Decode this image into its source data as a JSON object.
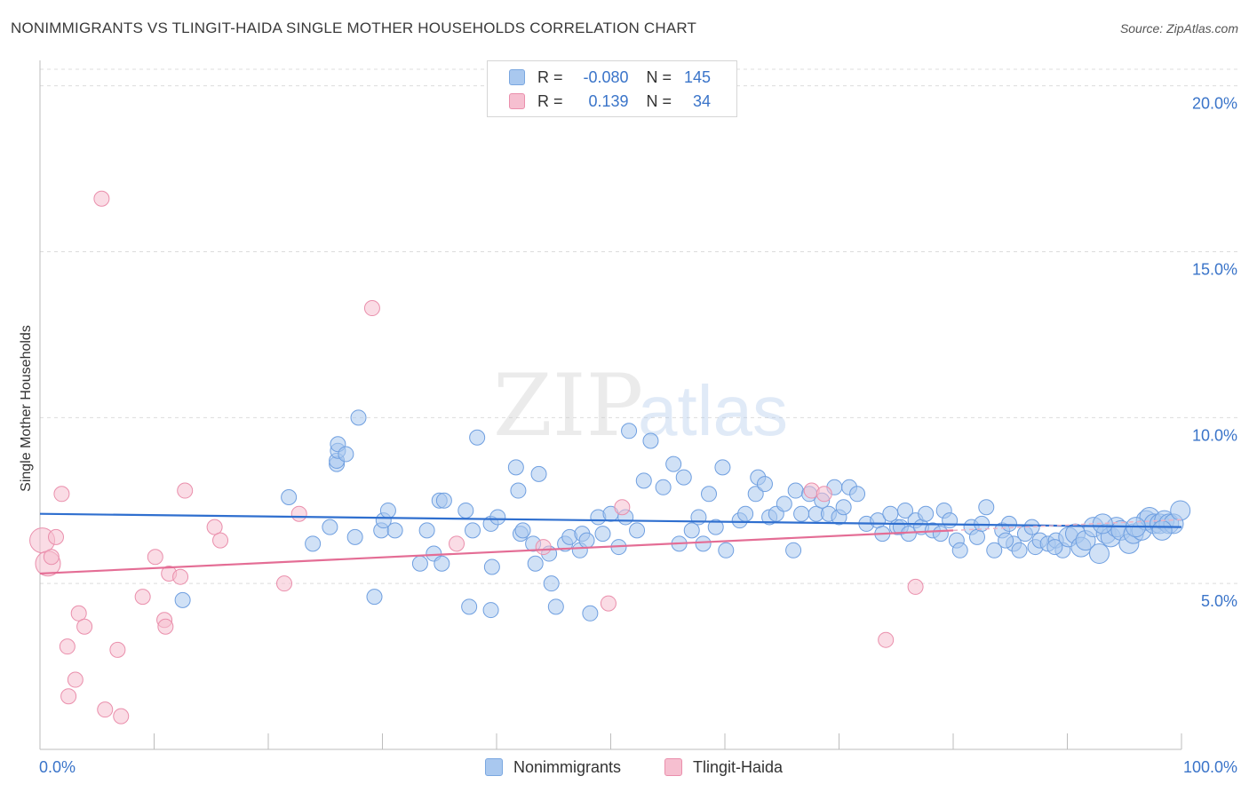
{
  "title": "NONIMMIGRANTS VS TLINGIT-HAIDA SINGLE MOTHER HOUSEHOLDS CORRELATION CHART",
  "source": "Source: ZipAtlas.com",
  "watermark": {
    "zip": "ZIP",
    "atlas": "atlas"
  },
  "legend": {
    "rows": [
      {
        "r_label": "R =",
        "r_value": "-0.080",
        "n_label": "N =",
        "n_value": "145",
        "color": "#a9c8ef",
        "border": "#7aa7e0"
      },
      {
        "r_label": "R =",
        "r_value": "0.139",
        "n_label": "N =",
        "n_value": "34",
        "color": "#f6bfd0",
        "border": "#ea8fac"
      }
    ]
  },
  "bottom_legend": [
    {
      "label": "Nonimmigrants",
      "color": "#a9c8ef",
      "border": "#7aa7e0"
    },
    {
      "label": "Tlingit-Haida",
      "color": "#f6bfd0",
      "border": "#ea8fac"
    }
  ],
  "chart_data": {
    "type": "scatter",
    "title": "NONIMMIGRANTS VS TLINGIT-HAIDA SINGLE MOTHER HOUSEHOLDS CORRELATION CHART",
    "xlabel": "",
    "ylabel": "Single Mother Households",
    "xlim": [
      0,
      100
    ],
    "ylim": [
      0,
      20.5
    ],
    "x_tick_labels": [
      "0.0%",
      "100.0%"
    ],
    "y_ticks": [
      5,
      10,
      15,
      20
    ],
    "y_tick_labels": [
      "5.0%",
      "10.0%",
      "15.0%",
      "20.0%"
    ],
    "grid": true,
    "series": [
      {
        "name": "Nonimmigrants",
        "color": "#6f9fe0",
        "trend": {
          "x0": 0,
          "y0": 7.1,
          "x1": 100,
          "y1": 6.7,
          "color": "#2f6fcf"
        },
        "points": [
          [
            12.5,
            4.5
          ],
          [
            21.8,
            7.6
          ],
          [
            23.9,
            6.2
          ],
          [
            25.4,
            6.7
          ],
          [
            26.0,
            8.6
          ],
          [
            26.0,
            8.7
          ],
          [
            26.1,
            9.0
          ],
          [
            26.1,
            9.2
          ],
          [
            26.8,
            8.9
          ],
          [
            27.6,
            6.4
          ],
          [
            27.9,
            10.0
          ],
          [
            29.3,
            4.6
          ],
          [
            29.9,
            6.6
          ],
          [
            30.1,
            6.9
          ],
          [
            30.5,
            7.2
          ],
          [
            31.1,
            6.6
          ],
          [
            33.3,
            5.6
          ],
          [
            33.9,
            6.6
          ],
          [
            34.5,
            5.9
          ],
          [
            35.0,
            7.5
          ],
          [
            35.2,
            5.6
          ],
          [
            35.4,
            7.5
          ],
          [
            37.3,
            7.2
          ],
          [
            37.6,
            4.3
          ],
          [
            37.9,
            6.6
          ],
          [
            38.3,
            9.4
          ],
          [
            39.6,
            5.5
          ],
          [
            39.5,
            4.2
          ],
          [
            39.5,
            6.8
          ],
          [
            40.1,
            7.0
          ],
          [
            41.7,
            8.5
          ],
          [
            41.9,
            7.8
          ],
          [
            42.1,
            6.5
          ],
          [
            42.3,
            6.6
          ],
          [
            43.2,
            6.2
          ],
          [
            43.4,
            5.6
          ],
          [
            43.7,
            8.3
          ],
          [
            44.6,
            5.9
          ],
          [
            44.8,
            5.0
          ],
          [
            45.2,
            4.3
          ],
          [
            46.0,
            6.2
          ],
          [
            46.4,
            6.4
          ],
          [
            47.3,
            6.0
          ],
          [
            47.5,
            6.5
          ],
          [
            47.9,
            6.3
          ],
          [
            48.2,
            4.1
          ],
          [
            48.9,
            7.0
          ],
          [
            49.3,
            6.5
          ],
          [
            50.0,
            7.1
          ],
          [
            50.7,
            6.1
          ],
          [
            51.3,
            7.0
          ],
          [
            51.6,
            9.6
          ],
          [
            52.3,
            6.6
          ],
          [
            52.9,
            8.1
          ],
          [
            53.5,
            9.3
          ],
          [
            54.6,
            7.9
          ],
          [
            55.5,
            8.6
          ],
          [
            56.0,
            6.2
          ],
          [
            56.4,
            8.2
          ],
          [
            57.1,
            6.6
          ],
          [
            57.7,
            7.0
          ],
          [
            58.1,
            6.2
          ],
          [
            58.6,
            7.7
          ],
          [
            59.2,
            6.7
          ],
          [
            59.8,
            8.5
          ],
          [
            60.1,
            6.0
          ],
          [
            61.3,
            6.9
          ],
          [
            61.8,
            7.1
          ],
          [
            62.7,
            7.7
          ],
          [
            62.9,
            8.2
          ],
          [
            63.5,
            8.0
          ],
          [
            63.9,
            7.0
          ],
          [
            64.5,
            7.1
          ],
          [
            65.2,
            7.4
          ],
          [
            66.0,
            6.0
          ],
          [
            66.2,
            7.8
          ],
          [
            66.7,
            7.1
          ],
          [
            67.4,
            7.7
          ],
          [
            68.0,
            7.1
          ],
          [
            68.5,
            7.5
          ],
          [
            69.1,
            7.1
          ],
          [
            69.6,
            7.9
          ],
          [
            70.0,
            7.0
          ],
          [
            70.4,
            7.3
          ],
          [
            70.9,
            7.9
          ],
          [
            71.6,
            7.7
          ],
          [
            72.4,
            6.8
          ],
          [
            73.4,
            6.9
          ],
          [
            73.8,
            6.5
          ],
          [
            74.5,
            7.1
          ],
          [
            75.1,
            6.7
          ],
          [
            75.4,
            6.7
          ],
          [
            75.8,
            7.2
          ],
          [
            76.1,
            6.5
          ],
          [
            76.7,
            6.9
          ],
          [
            77.2,
            6.7
          ],
          [
            77.6,
            7.1
          ],
          [
            78.2,
            6.6
          ],
          [
            78.9,
            6.5
          ],
          [
            79.2,
            7.2
          ],
          [
            79.7,
            6.9
          ],
          [
            80.3,
            6.3
          ],
          [
            80.6,
            6.0
          ],
          [
            81.6,
            6.7
          ],
          [
            82.1,
            6.4
          ],
          [
            82.5,
            6.8
          ],
          [
            82.9,
            7.3
          ],
          [
            83.6,
            6.0
          ],
          [
            84.3,
            6.6
          ],
          [
            84.9,
            6.8
          ],
          [
            85.3,
            6.2
          ],
          [
            85.8,
            6.0
          ],
          [
            86.3,
            6.5
          ],
          [
            86.9,
            6.7
          ],
          [
            87.2,
            6.1
          ],
          [
            87.6,
            6.3
          ],
          [
            88.3,
            6.2
          ],
          [
            89.0,
            6.3
          ],
          [
            89.6,
            6.0
          ],
          [
            90.1,
            6.4
          ],
          [
            90.7,
            6.5
          ],
          [
            91.2,
            6.1
          ],
          [
            91.6,
            6.3
          ],
          [
            92.3,
            6.7
          ],
          [
            92.8,
            5.9
          ],
          [
            93.4,
            6.5
          ],
          [
            93.8,
            6.4
          ],
          [
            94.3,
            6.7
          ],
          [
            94.7,
            6.6
          ],
          [
            95.4,
            6.2
          ],
          [
            95.8,
            6.5
          ],
          [
            96.5,
            6.6
          ],
          [
            96.9,
            6.9
          ],
          [
            97.2,
            7.0
          ],
          [
            97.6,
            6.8
          ],
          [
            98.1,
            6.8
          ],
          [
            98.5,
            6.9
          ],
          [
            98.9,
            6.8
          ],
          [
            99.3,
            6.8
          ],
          [
            99.9,
            7.2
          ],
          [
            98.3,
            6.6
          ],
          [
            96.0,
            6.7
          ],
          [
            93.1,
            6.8
          ],
          [
            88.9,
            6.1
          ],
          [
            84.6,
            6.3
          ]
        ]
      },
      {
        "name": "Tlingit-Haida",
        "color": "#f29ab6",
        "trend": {
          "x0": 0,
          "y0": 5.3,
          "x1": 80,
          "y1": 6.6,
          "color": "#e46d95"
        },
        "points": [
          [
            0.2,
            6.3
          ],
          [
            0.7,
            5.6
          ],
          [
            1.0,
            5.8
          ],
          [
            1.4,
            6.4
          ],
          [
            1.9,
            7.7
          ],
          [
            2.4,
            3.1
          ],
          [
            2.5,
            1.6
          ],
          [
            3.1,
            2.1
          ],
          [
            3.4,
            4.1
          ],
          [
            3.9,
            3.7
          ],
          [
            5.4,
            16.6
          ],
          [
            5.7,
            1.2
          ],
          [
            6.8,
            3.0
          ],
          [
            7.1,
            1.0
          ],
          [
            9.0,
            4.6
          ],
          [
            10.1,
            5.8
          ],
          [
            10.9,
            3.9
          ],
          [
            11.0,
            3.7
          ],
          [
            11.3,
            5.3
          ],
          [
            12.3,
            5.2
          ],
          [
            12.7,
            7.8
          ],
          [
            15.3,
            6.7
          ],
          [
            15.8,
            6.3
          ],
          [
            21.4,
            5.0
          ],
          [
            22.7,
            7.1
          ],
          [
            29.1,
            13.3
          ],
          [
            36.5,
            6.2
          ],
          [
            44.1,
            6.1
          ],
          [
            49.8,
            4.4
          ],
          [
            51.0,
            7.3
          ],
          [
            67.6,
            7.8
          ],
          [
            68.7,
            7.7
          ],
          [
            74.1,
            3.3
          ],
          [
            76.7,
            4.9
          ]
        ]
      }
    ]
  }
}
